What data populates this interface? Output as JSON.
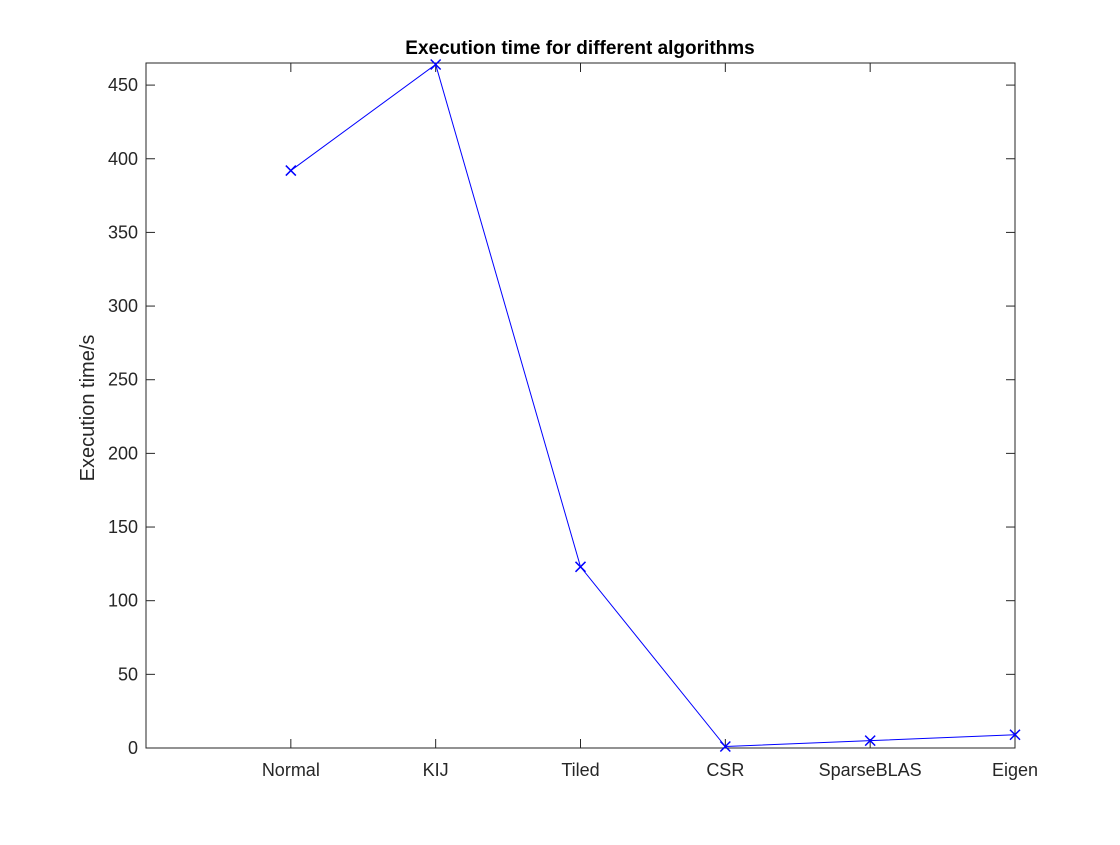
{
  "chart_data": {
    "type": "line",
    "title": "Execution time for different algorithms",
    "xlabel": "",
    "ylabel": "Execution time/s",
    "categories": [
      "Normal",
      "KIJ",
      "Tiled",
      "CSR",
      "SparseBLAS",
      "Eigen"
    ],
    "series": [
      {
        "values": [
          392,
          464,
          123,
          1,
          5,
          9
        ],
        "color": "#0000ff",
        "marker": "x"
      }
    ],
    "ylim": [
      0,
      465
    ],
    "yticks": [
      0,
      50,
      100,
      150,
      200,
      250,
      300,
      350,
      400,
      450
    ],
    "grid": false,
    "box": true,
    "axis_color": "#262626"
  }
}
